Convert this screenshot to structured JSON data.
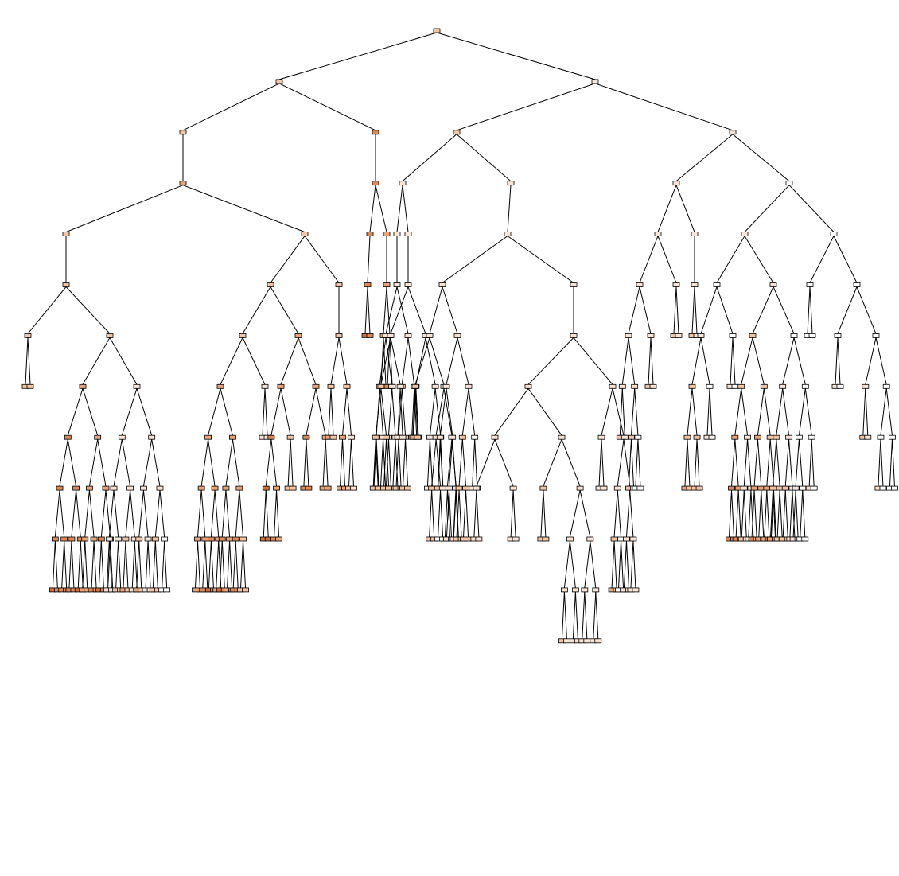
{
  "diagram": {
    "type": "decision-tree",
    "max_depth": 16,
    "node_labels_visible": false,
    "edge_color": "#000000",
    "node_border_color": "#000000",
    "node_fill_scale": [
      "#ffffff",
      "#f9e5d7",
      "#f2c5a4",
      "#e9a47a",
      "#dd8a5b",
      "#cf6f3a"
    ]
  }
}
